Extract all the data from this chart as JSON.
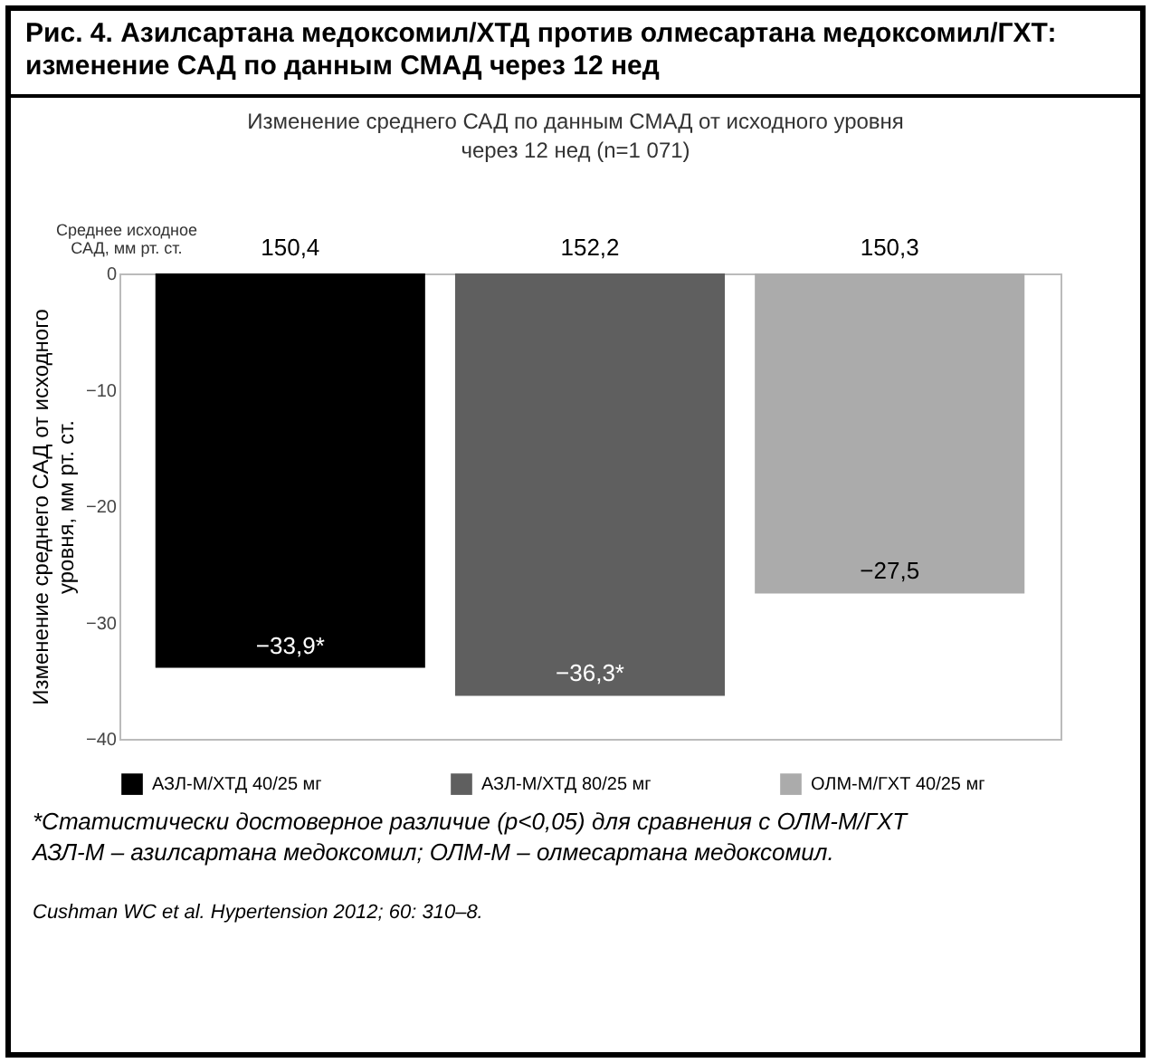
{
  "chart_data": {
    "type": "bar",
    "title": "Рис. 4. Азилсартана медоксомил/ХТД против олмесартана медоксомил/ГХТ: изменение САД по данным СМАД через 12 нед",
    "subtitle": "Изменение среднего САД по данным СМАД от исходного уровня через 12 нед (n=1 071)",
    "ylabel": "Изменение среднего САД от исходного уровня, мм рт. ст.",
    "categories": [
      null
    ],
    "series": [
      {
        "name": "АЗЛ-М/ХТД 40/25 мг",
        "color": "#000000",
        "values": [
          -33.9
        ],
        "value_labels": [
          "−33,9*"
        ]
      },
      {
        "name": "АЗЛ-М/ХТД 80/25 мг",
        "color": "#5f5f5f",
        "values": [
          -36.3
        ],
        "value_labels": [
          "−36,3*"
        ]
      },
      {
        "name": "ОЛМ-М/ГХТ 40/25 мг",
        "color": "#ababab",
        "values": [
          -27.5
        ],
        "value_labels": [
          "−27,5"
        ]
      }
    ],
    "ylim": [
      -40,
      0
    ],
    "yticks": [
      0,
      -10,
      -20,
      -30,
      -40
    ],
    "grid": false,
    "legend": "bottom",
    "annotations": [
      "Среднее исходное САД, мм рт. ст.",
      "150,4",
      "152,2",
      "150,3",
      "*Статистически достоверное различие (p<0,05) для сравнения с ОЛМ-М/ГХТ",
      "АЗЛ-М  – азилсартана медоксомил; ОЛМ-М – олмесартана медоксомил.",
      "Cushman WC et al. Hypertension 2012; 60: 310–8."
    ]
  }
}
